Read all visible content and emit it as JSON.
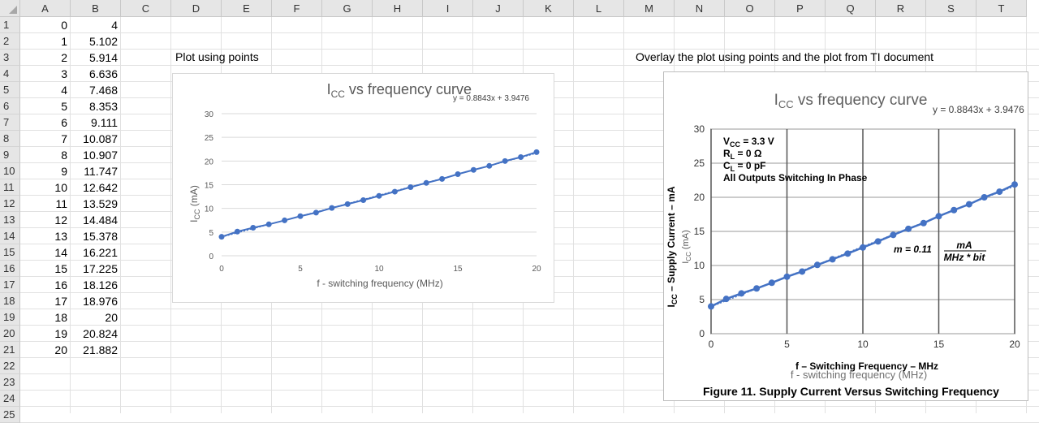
{
  "columns": [
    "A",
    "B",
    "C",
    "D",
    "E",
    "F",
    "G",
    "H",
    "I",
    "J",
    "K",
    "L",
    "M",
    "N",
    "O",
    "P",
    "Q",
    "R",
    "S",
    "T"
  ],
  "rows": [
    "1",
    "2",
    "3",
    "4",
    "5",
    "6",
    "7",
    "8",
    "9",
    "10",
    "11",
    "12",
    "13",
    "14",
    "15",
    "16",
    "17",
    "18",
    "19",
    "20",
    "21",
    "22",
    "23",
    "24",
    "25"
  ],
  "sheet": {
    "a_values": [
      "0",
      "1",
      "2",
      "3",
      "4",
      "5",
      "6",
      "7",
      "8",
      "9",
      "10",
      "11",
      "12",
      "13",
      "14",
      "15",
      "16",
      "17",
      "18",
      "19",
      "20"
    ],
    "b_values": [
      "4",
      "5.102",
      "5.914",
      "6.636",
      "7.468",
      "8.353",
      "9.111",
      "10.087",
      "10.907",
      "11.747",
      "12.642",
      "13.529",
      "14.484",
      "15.378",
      "16.221",
      "17.225",
      "18.126",
      "18.976",
      "20",
      "20.824",
      "21.882"
    ],
    "label_left": "Plot using points",
    "label_right": "Overlay the plot using points and the plot from TI document"
  },
  "chart_left": {
    "title_main": "I",
    "title_sub": "CC",
    "title_rest": " vs frequency curve",
    "trendline": "y = 0.8843x + 3.9476",
    "ylabel_main": "I",
    "ylabel_sub": "CC",
    "ylabel_rest": " (mA)",
    "xlabel": "f - switching frequency (MHz)"
  },
  "chart_right": {
    "title_main": "I",
    "title_sub": "CC",
    "title_rest": " vs frequency curve",
    "trendline": "y = 0.8843x + 3.9476",
    "ylabel_overlay": "I",
    "ylabel_overlay_sub": "CC",
    "ylabel_overlay_rest": " (mA)",
    "xlabel_overlay": "f - switching frequency (MHz)",
    "ti_ylabel": "I",
    "ti_ylabel_sub": "CC",
    "ti_ylabel_rest": " – Supply Current – mA",
    "ti_xlabel": "f – Switching Frequency – MHz",
    "ti_legend": {
      "line1_main": "V",
      "line1_sub": "CC",
      "line1_rest": " = 3.3 V",
      "line2_main": "R",
      "line2_sub": "L",
      "line2_rest": " = 0 Ω",
      "line3_main": "C",
      "line3_sub": "L",
      "line3_rest": " = 0 pF",
      "line4": "All Outputs Switching In Phase"
    },
    "slope_prefix": "m  =  0.11",
    "slope_num": "mA",
    "slope_den": "MHz * bit",
    "caption": "Figure 11.  Supply Current Versus Switching Frequency"
  },
  "chart_data": [
    {
      "type": "line",
      "title": "ICC vs frequency curve",
      "xlabel": "f - switching frequency (MHz)",
      "ylabel": "ICC (mA)",
      "xlim": [
        0,
        20
      ],
      "ylim": [
        0,
        30
      ],
      "xticks": [
        "0",
        "5",
        "10",
        "15",
        "20"
      ],
      "yticks": [
        "0",
        "5",
        "10",
        "15",
        "20",
        "25",
        "30"
      ],
      "x": [
        0,
        1,
        2,
        3,
        4,
        5,
        6,
        7,
        8,
        9,
        10,
        11,
        12,
        13,
        14,
        15,
        16,
        17,
        18,
        19,
        20
      ],
      "series": [
        {
          "values": [
            4,
            5.102,
            5.914,
            6.636,
            7.468,
            8.353,
            9.111,
            10.087,
            10.907,
            11.747,
            12.642,
            13.529,
            14.484,
            15.378,
            16.221,
            17.225,
            18.126,
            18.976,
            20,
            20.824,
            21.882
          ]
        }
      ],
      "trendline": "y = 0.8843x + 3.9476",
      "color": "#4472c4",
      "grid": true
    },
    {
      "type": "line",
      "title": "ICC vs frequency curve",
      "xlabel": "f - switching frequency (MHz)",
      "ylabel": "ICC (mA)",
      "xlim": [
        0,
        20
      ],
      "ylim": [
        0,
        30
      ],
      "xticks": [
        "0",
        "5",
        "10",
        "15",
        "20"
      ],
      "yticks": [
        "0",
        "5",
        "10",
        "15",
        "20",
        "25",
        "30"
      ],
      "x": [
        0,
        1,
        2,
        3,
        4,
        5,
        6,
        7,
        8,
        9,
        10,
        11,
        12,
        13,
        14,
        15,
        16,
        17,
        18,
        19,
        20
      ],
      "series": [
        {
          "values": [
            4,
            5.102,
            5.914,
            6.636,
            7.468,
            8.353,
            9.111,
            10.087,
            10.907,
            11.747,
            12.642,
            13.529,
            14.484,
            15.378,
            16.221,
            17.225,
            18.126,
            18.976,
            20,
            20.824,
            21.882
          ]
        }
      ],
      "trendline": "y = 0.8843x + 3.9476",
      "color": "#4472c4",
      "grid": true
    }
  ]
}
